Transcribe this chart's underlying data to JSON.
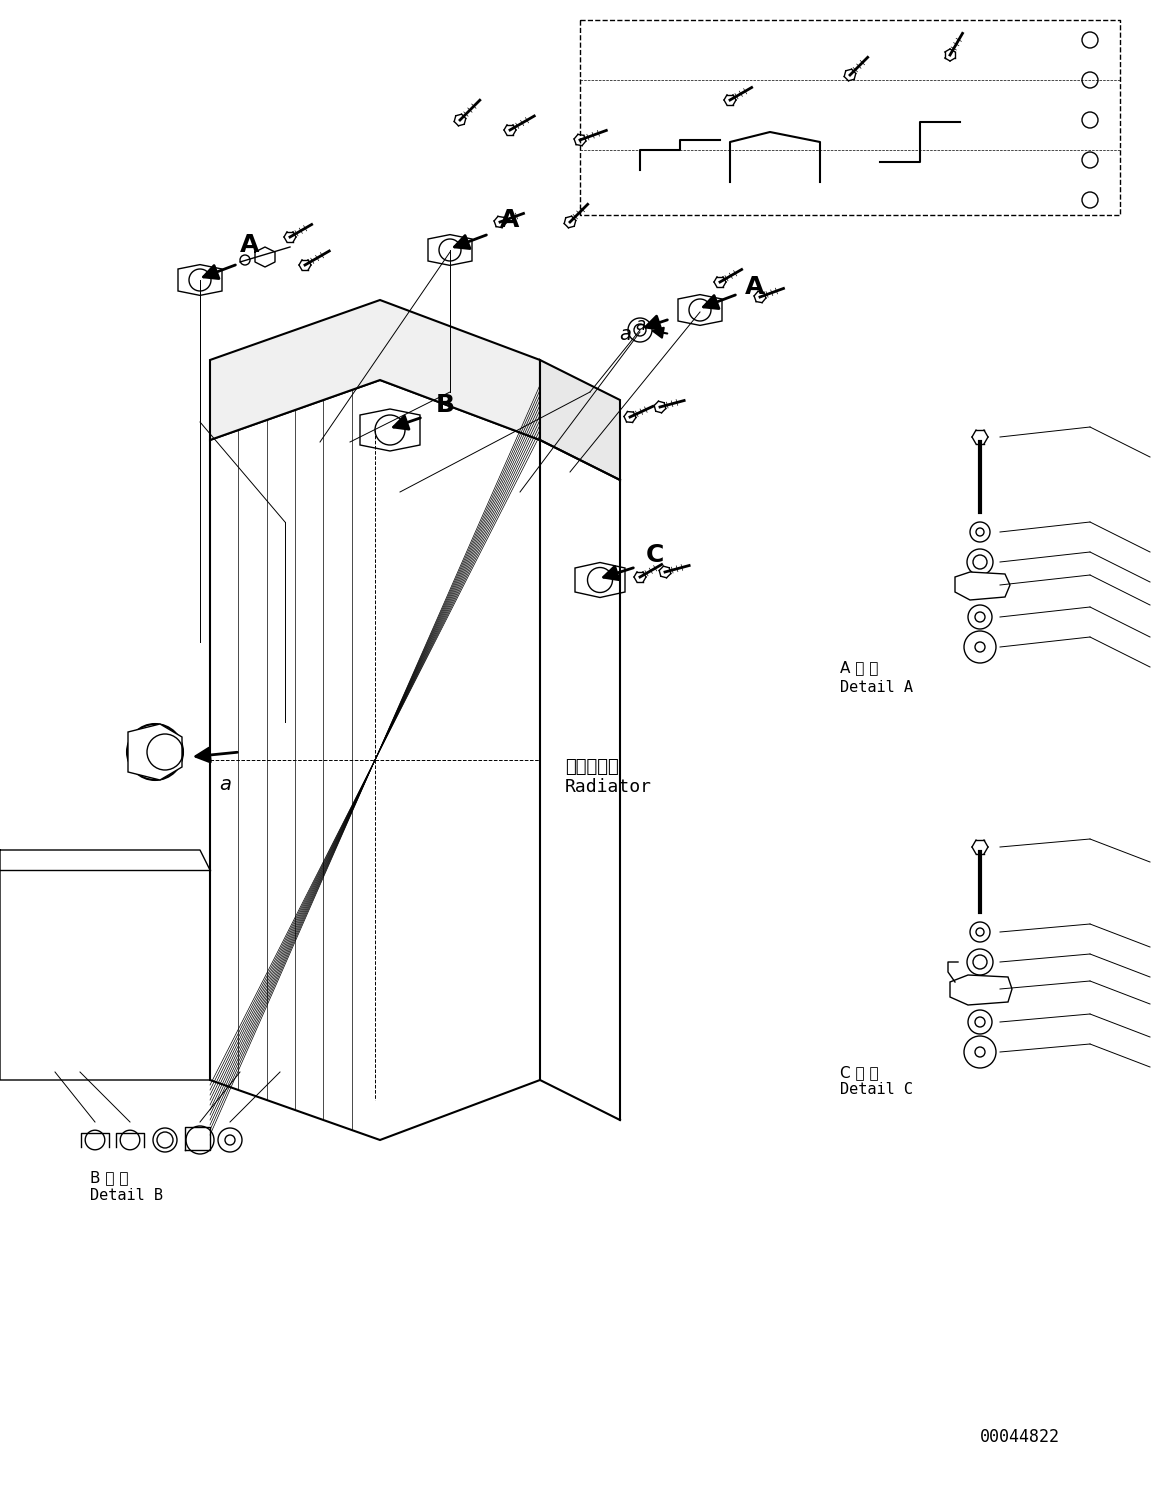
{
  "bg_color": "#ffffff",
  "line_color": "#000000",
  "fig_width": 11.63,
  "fig_height": 14.92,
  "dpi": 100,
  "part_id": "00044822",
  "labels": {
    "A_detail_jp": "A 詳 細",
    "A_detail_en": "Detail A",
    "B_detail_jp": "B 詳 細",
    "B_detail_en": "Detail B",
    "C_detail_jp": "C 詳 細",
    "C_detail_en": "Detail C",
    "radiator_jp": "ラジェータ",
    "radiator_en": "Radiator"
  }
}
